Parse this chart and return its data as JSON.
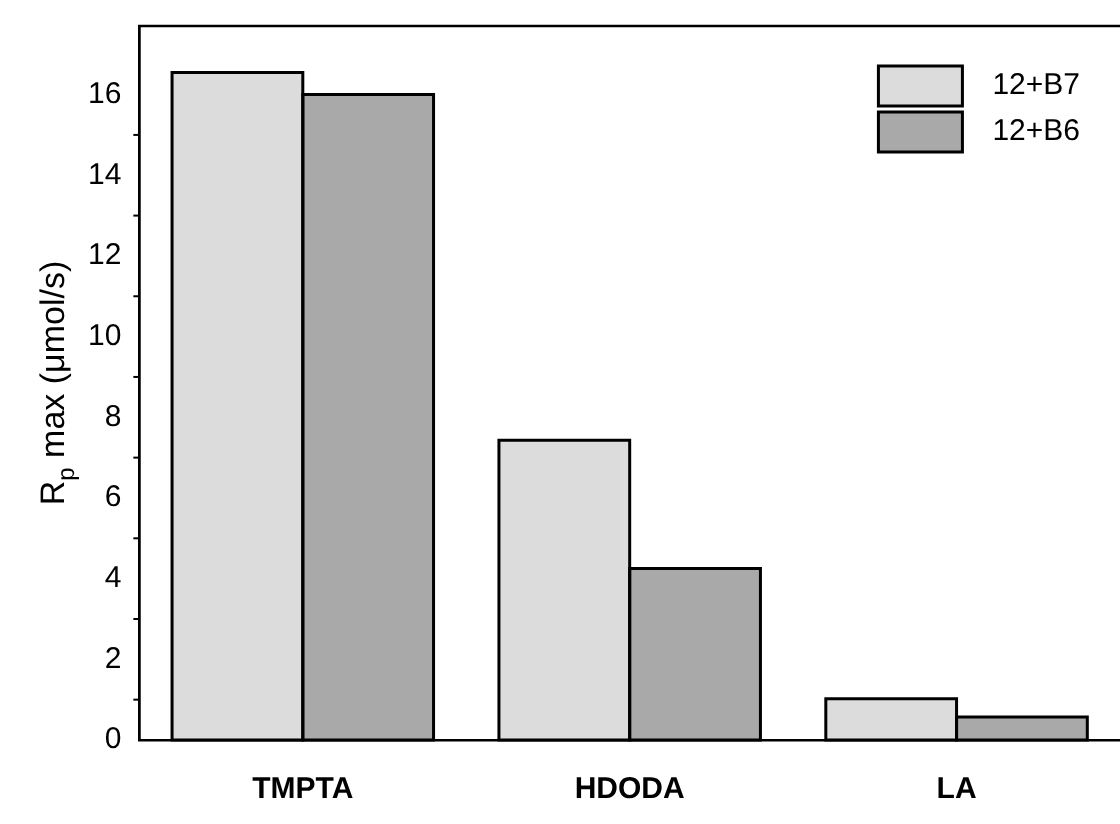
{
  "chart_data": {
    "type": "bar",
    "ylabel": "R$_{p}$ max (μmol/s)",
    "categories": [
      "TMPTA",
      "HDODA",
      "LA"
    ],
    "series": [
      {
        "name": "12+B7",
        "color": "#dcdcdc",
        "values": [
          16.55,
          7.43,
          1.02
        ]
      },
      {
        "name": "12+B6",
        "color": "#a9a9a9",
        "values": [
          16.0,
          4.25,
          0.57
        ]
      }
    ],
    "ylim": [
      0,
      17.7
    ],
    "yticks": [
      0,
      2,
      4,
      6,
      8,
      10,
      12,
      14,
      16
    ],
    "grid": false,
    "legend": "top right"
  }
}
